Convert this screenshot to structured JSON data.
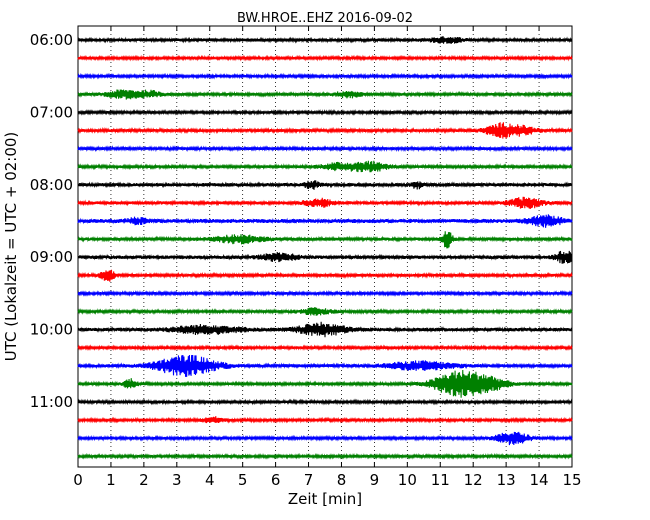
{
  "chart_data": {
    "type": "line",
    "title": "BW.HROE..EHZ 2016-09-02",
    "xlabel": "Zeit  [min]",
    "ylabel": "UTC (Lokalzeit = UTC + 02:00)",
    "xlim": [
      0,
      15
    ],
    "x_ticks": [
      "0",
      "1",
      "2",
      "3",
      "4",
      "5",
      "6",
      "7",
      "8",
      "9",
      "10",
      "11",
      "12",
      "13",
      "14",
      "15"
    ],
    "y_ticks": [
      "06:00",
      "07:00",
      "08:00",
      "09:00",
      "10:00",
      "11:00"
    ],
    "grid": "vertical dotted at each minute",
    "trace_colors": [
      "#000000",
      "#ff0000",
      "#0000ff",
      "#008000"
    ],
    "traces": [
      {
        "start": "06:00",
        "color": "#000000",
        "base_amp": 1.6,
        "events": [
          {
            "t": 11.2,
            "amp": 2.5,
            "width": 0.5
          }
        ]
      },
      {
        "start": "06:15",
        "color": "#ff0000",
        "base_amp": 1.3,
        "events": []
      },
      {
        "start": "06:30",
        "color": "#0000ff",
        "base_amp": 1.3,
        "events": []
      },
      {
        "start": "06:45",
        "color": "#008000",
        "base_amp": 1.4,
        "events": [
          {
            "t": 1.4,
            "amp": 4,
            "width": 0.5
          },
          {
            "t": 2.2,
            "amp": 3,
            "width": 0.4
          },
          {
            "t": 8.2,
            "amp": 3,
            "width": 0.4
          }
        ]
      },
      {
        "start": "07:00",
        "color": "#000000",
        "base_amp": 1.3,
        "events": []
      },
      {
        "start": "07:15",
        "color": "#ff0000",
        "base_amp": 1.4,
        "events": [
          {
            "t": 12.9,
            "amp": 7,
            "width": 0.5
          },
          {
            "t": 13.6,
            "amp": 3,
            "width": 0.4
          }
        ]
      },
      {
        "start": "07:30",
        "color": "#0000ff",
        "base_amp": 1.4,
        "events": []
      },
      {
        "start": "07:45",
        "color": "#008000",
        "base_amp": 1.4,
        "events": [
          {
            "t": 8.8,
            "amp": 5,
            "width": 0.6
          },
          {
            "t": 7.8,
            "amp": 3,
            "width": 0.5
          }
        ]
      },
      {
        "start": "08:00",
        "color": "#000000",
        "base_amp": 1.7,
        "events": [
          {
            "t": 7.1,
            "amp": 4,
            "width": 0.2
          },
          {
            "t": 10.3,
            "amp": 3,
            "width": 0.2
          }
        ]
      },
      {
        "start": "08:15",
        "color": "#ff0000",
        "base_amp": 1.6,
        "events": [
          {
            "t": 7.3,
            "amp": 4,
            "width": 0.4
          },
          {
            "t": 13.6,
            "amp": 5,
            "width": 0.5
          }
        ]
      },
      {
        "start": "08:30",
        "color": "#0000ff",
        "base_amp": 2.0,
        "events": [
          {
            "t": 14.2,
            "amp": 5,
            "width": 0.5
          },
          {
            "t": 1.8,
            "amp": 3,
            "width": 0.3
          }
        ]
      },
      {
        "start": "08:45",
        "color": "#008000",
        "base_amp": 1.6,
        "events": [
          {
            "t": 4.9,
            "amp": 4,
            "width": 0.7
          },
          {
            "t": 11.2,
            "amp": 10,
            "width": 0.15
          }
        ]
      },
      {
        "start": "09:00",
        "color": "#000000",
        "base_amp": 1.8,
        "events": [
          {
            "t": 6.1,
            "amp": 4,
            "width": 0.5
          },
          {
            "t": 14.8,
            "amp": 6,
            "width": 0.3
          }
        ]
      },
      {
        "start": "09:15",
        "color": "#ff0000",
        "base_amp": 1.4,
        "events": [
          {
            "t": 0.9,
            "amp": 6,
            "width": 0.2
          }
        ]
      },
      {
        "start": "09:30",
        "color": "#0000ff",
        "base_amp": 1.3,
        "events": []
      },
      {
        "start": "09:45",
        "color": "#008000",
        "base_amp": 1.3,
        "events": [
          {
            "t": 7.2,
            "amp": 3,
            "width": 0.5
          }
        ]
      },
      {
        "start": "10:00",
        "color": "#000000",
        "base_amp": 1.8,
        "events": [
          {
            "t": 3.9,
            "amp": 4,
            "width": 1.0
          },
          {
            "t": 7.4,
            "amp": 6,
            "width": 0.7
          }
        ]
      },
      {
        "start": "10:15",
        "color": "#ff0000",
        "base_amp": 1.3,
        "events": []
      },
      {
        "start": "10:30",
        "color": "#0000ff",
        "base_amp": 1.6,
        "events": [
          {
            "t": 3.3,
            "amp": 10,
            "width": 0.9
          },
          {
            "t": 10.4,
            "amp": 4,
            "width": 1.0
          }
        ]
      },
      {
        "start": "10:45",
        "color": "#008000",
        "base_amp": 1.4,
        "events": [
          {
            "t": 1.6,
            "amp": 5,
            "width": 0.2
          },
          {
            "t": 11.5,
            "amp": 12,
            "width": 0.7
          },
          {
            "t": 12.4,
            "amp": 7,
            "width": 0.6
          }
        ]
      },
      {
        "start": "11:00",
        "color": "#000000",
        "base_amp": 1.4,
        "events": []
      },
      {
        "start": "11:15",
        "color": "#ff0000",
        "base_amp": 1.3,
        "events": [
          {
            "t": 4.1,
            "amp": 3,
            "width": 0.3
          }
        ]
      },
      {
        "start": "11:30",
        "color": "#0000ff",
        "base_amp": 1.3,
        "events": [
          {
            "t": 13.2,
            "amp": 6,
            "width": 0.5
          }
        ]
      },
      {
        "start": "11:45",
        "color": "#008000",
        "base_amp": 1.3,
        "events": []
      }
    ]
  }
}
